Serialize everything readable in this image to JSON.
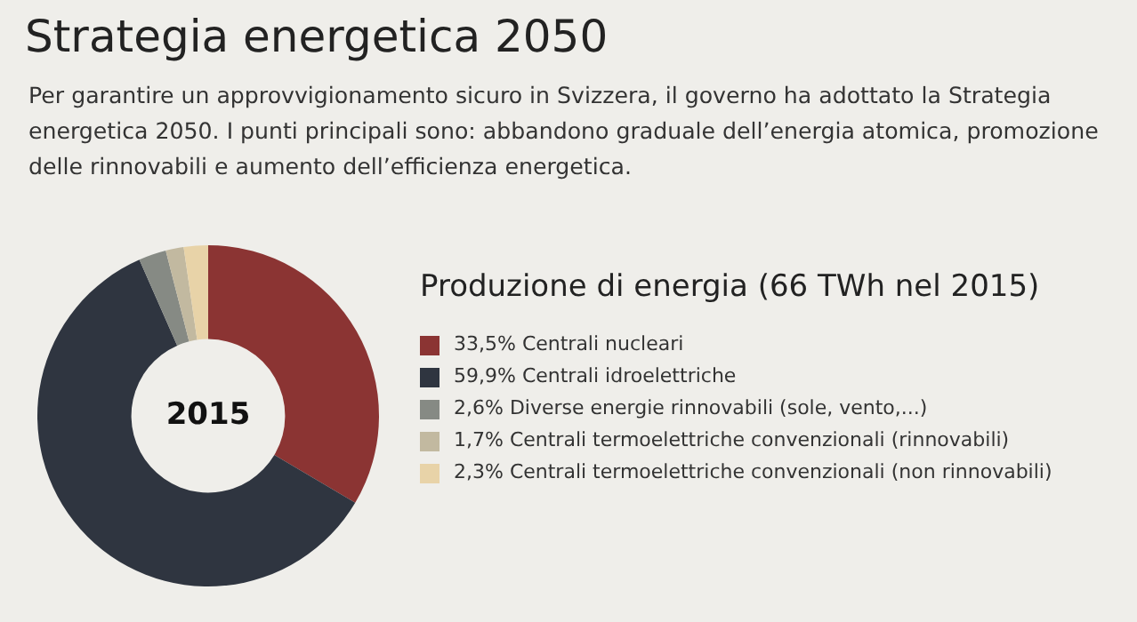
{
  "chart_data": {
    "type": "donut",
    "title": "Strategia energetica 2050",
    "subtitle": "Per garantire un approvvigionamento sicuro in Svizzera, il governo ha adottato la Strategia energetica 2050. I punti principali sono: abbandono graduale dell’energia atomica, promozione delle rinnovabili e aumento dell’efficienza energetica.",
    "legend_title": "Produzione di energia (66 TWh nel 2015)",
    "categories": [
      "Centrali nucleari",
      "Centrali idroelettriche",
      "Diverse energie rinnovabili (sole, vento,...)",
      "Centrali termoelettriche convenzionali (rinnovabili)",
      "Centrali termoelettriche convenzionali (non rinnovabili)"
    ],
    "values": [
      33.5,
      59.9,
      2.6,
      1.7,
      2.3
    ],
    "value_labels": [
      "33,5%",
      "59,9%",
      "2,6%",
      "1,7%",
      "2,3%"
    ],
    "colors": [
      "#8b3433",
      "#2f3540",
      "#868a84",
      "#c2b9a0",
      "#e8d3a8"
    ],
    "annotations": [
      "2015"
    ],
    "legend": "right"
  }
}
